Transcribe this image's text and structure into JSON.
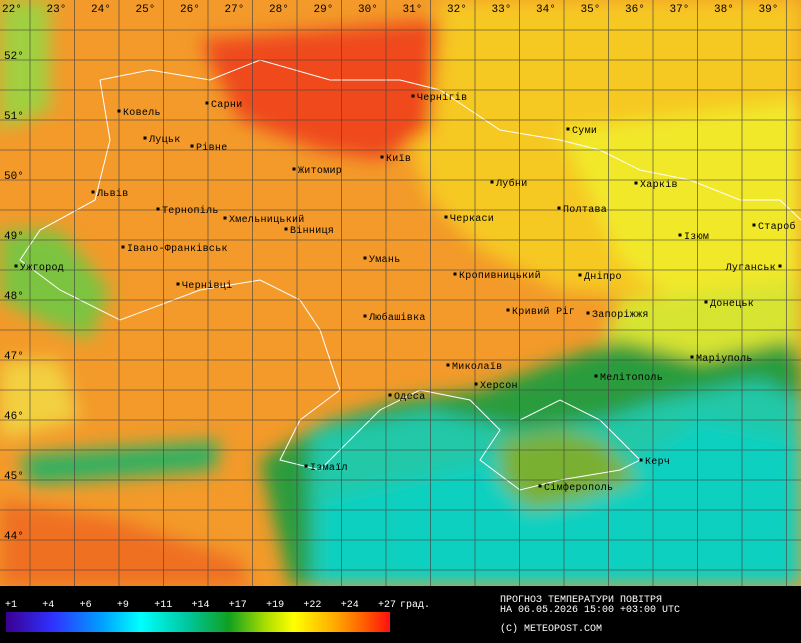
{
  "lon_labels": [
    "22°",
    "23°",
    "24°",
    "25°",
    "26°",
    "27°",
    "28°",
    "29°",
    "30°",
    "31°",
    "32°",
    "33°",
    "34°",
    "35°",
    "36°",
    "37°",
    "38°",
    "39°"
  ],
  "lat_labels": [
    "52°",
    "51°",
    "50°",
    "49°",
    "48°",
    "47°",
    "46°",
    "45°",
    "44°"
  ],
  "cities": [
    "Ковель",
    "Сарни",
    "Чернігів",
    "Луцьк",
    "Рівне",
    "Суми",
    "Київ",
    "Житомир",
    "Львів",
    "Лубни",
    "Харків",
    "Тернопіль",
    "Хмельницький",
    "Вінниця",
    "Черкаси",
    "Полтава",
    "Староб",
    "Ізюм",
    "Івано-Франківськ",
    "Ужгород",
    "Умань",
    "Луганськ",
    "Кропивницький",
    "Дніпро",
    "Чернівці",
    "Донецьк",
    "Кривий Ріг",
    "Запоріжжя",
    "Любашівка",
    "Маріуполь",
    "Миколаїв",
    "Мелітополь",
    "Херсон",
    "Одеса",
    "Керч",
    "Ізмаїл",
    "Сімферополь"
  ],
  "legend": {
    "labels": [
      "+1",
      "+4",
      "+6",
      "+9",
      "+11",
      "+14",
      "+17",
      "+19",
      "+22",
      "+24",
      "+27"
    ],
    "unit": "град."
  },
  "caption": {
    "line1": "ПРОГНОЗ ТЕМПЕРАТУРИ ПОВІТРЯ",
    "line2": "НА 06.05.2026 15:00 +03:00 UTC",
    "credit": "(C) METEOPOST.COM"
  }
}
